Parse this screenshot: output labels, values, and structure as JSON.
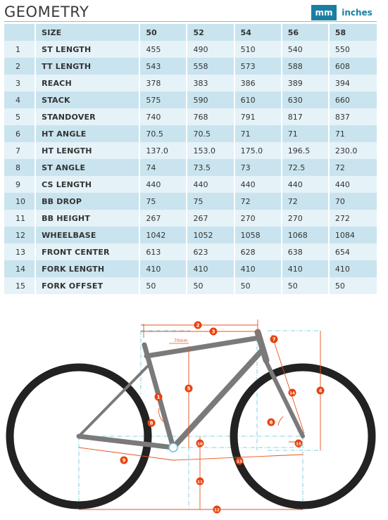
{
  "header": {
    "title": "GEOMETRY",
    "units": {
      "mm": "mm",
      "inches": "inches",
      "selected": "mm"
    }
  },
  "table": {
    "size_label": "SIZE",
    "sizes": [
      "50",
      "52",
      "54",
      "56",
      "58"
    ],
    "rows": [
      {
        "num": "1",
        "name": "ST LENGTH",
        "values": [
          "455",
          "490",
          "510",
          "540",
          "550"
        ]
      },
      {
        "num": "2",
        "name": "TT LENGTH",
        "values": [
          "543",
          "558",
          "573",
          "588",
          "608"
        ]
      },
      {
        "num": "3",
        "name": "REACH",
        "values": [
          "378",
          "383",
          "386",
          "389",
          "394"
        ]
      },
      {
        "num": "4",
        "name": "STACK",
        "values": [
          "575",
          "590",
          "610",
          "630",
          "660"
        ]
      },
      {
        "num": "5",
        "name": "STANDOVER",
        "values": [
          "740",
          "768",
          "791",
          "817",
          "837"
        ]
      },
      {
        "num": "6",
        "name": "HT ANGLE",
        "values": [
          "70.5",
          "70.5",
          "71",
          "71",
          "71"
        ]
      },
      {
        "num": "7",
        "name": "HT LENGTH",
        "values": [
          "137.0",
          "153.0",
          "175.0",
          "196.5",
          "230.0"
        ]
      },
      {
        "num": "8",
        "name": "ST ANGLE",
        "values": [
          "74",
          "73.5",
          "73",
          "72.5",
          "72"
        ]
      },
      {
        "num": "9",
        "name": "CS LENGTH",
        "values": [
          "440",
          "440",
          "440",
          "440",
          "440"
        ]
      },
      {
        "num": "10",
        "name": "BB DROP",
        "values": [
          "75",
          "75",
          "72",
          "72",
          "70"
        ]
      },
      {
        "num": "11",
        "name": "BB HEIGHT",
        "values": [
          "267",
          "267",
          "270",
          "270",
          "272"
        ]
      },
      {
        "num": "12",
        "name": "WHEELBASE",
        "values": [
          "1042",
          "1052",
          "1058",
          "1068",
          "1084"
        ]
      },
      {
        "num": "13",
        "name": "FRONT CENTER",
        "values": [
          "613",
          "623",
          "628",
          "638",
          "654"
        ]
      },
      {
        "num": "14",
        "name": "FORK LENGTH",
        "values": [
          "410",
          "410",
          "410",
          "410",
          "410"
        ]
      },
      {
        "num": "15",
        "name": "FORK OFFSET",
        "values": [
          "50",
          "50",
          "50",
          "50",
          "50"
        ]
      }
    ]
  },
  "diagram": {
    "offset_label": "70mm",
    "markers": [
      "1",
      "2",
      "3",
      "4",
      "5",
      "6",
      "7",
      "8",
      "9",
      "10",
      "11",
      "12",
      "13",
      "14",
      "15"
    ],
    "colors": {
      "frame": "#7a7a7a",
      "tire": "#222222",
      "dimension": "#e8531f",
      "guide": "#5fc3d8",
      "marker_fill": "#e8420f"
    }
  }
}
